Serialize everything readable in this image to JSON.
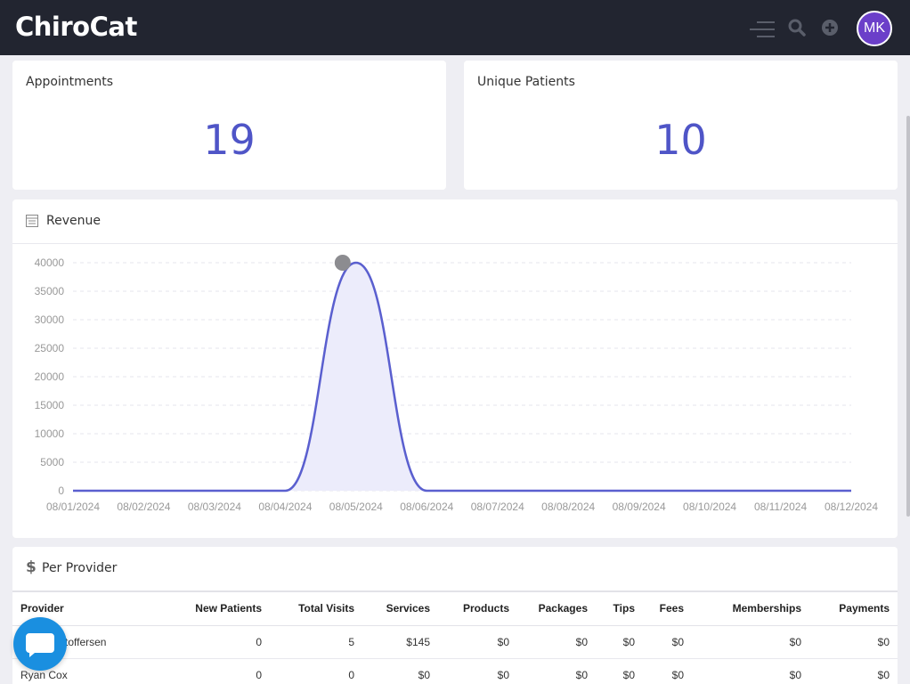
{
  "app": {
    "logo": "ChiroCat",
    "avatar_initials": "MK"
  },
  "stats": {
    "appointments": {
      "label": "Appointments",
      "value": "19"
    },
    "unique_patients": {
      "label": "Unique Patients",
      "value": "10"
    }
  },
  "revenue": {
    "title": "Revenue"
  },
  "chart_data": {
    "type": "area",
    "title": "Revenue",
    "x": [
      "08/01/2024",
      "08/02/2024",
      "08/03/2024",
      "08/04/2024",
      "08/05/2024",
      "08/06/2024",
      "08/07/2024",
      "08/08/2024",
      "08/09/2024",
      "08/10/2024",
      "08/11/2024",
      "08/12/2024"
    ],
    "series": [
      {
        "values": [
          0,
          0,
          0,
          0,
          40000,
          0,
          0,
          0,
          0,
          0,
          0,
          0
        ]
      }
    ],
    "y_ticks": [
      "0",
      "5000",
      "10000",
      "15000",
      "20000",
      "25000",
      "30000",
      "35000",
      "40000"
    ],
    "ylim": [
      0,
      40000
    ],
    "grid": true,
    "colors": {
      "line": "#5a5fcf",
      "fill": "#ececfb"
    }
  },
  "per_provider": {
    "title": "Per Provider",
    "columns": [
      "Provider",
      "New Patients",
      "Total Visits",
      "Services",
      "Products",
      "Packages",
      "Tips",
      "Fees",
      "Memberships",
      "Payments"
    ],
    "rows": [
      [
        "Jim Christoffersen",
        "0",
        "5",
        "$145",
        "$0",
        "$0",
        "$0",
        "$0",
        "$0",
        "$0"
      ],
      [
        "Ryan Cox",
        "0",
        "0",
        "$0",
        "$0",
        "$0",
        "$0",
        "$0",
        "$0",
        "$0"
      ]
    ]
  },
  "icons": [
    "menu-icon",
    "search-icon",
    "add-circle-icon",
    "calendar-icon",
    "dollar-icon",
    "chat-icon"
  ]
}
